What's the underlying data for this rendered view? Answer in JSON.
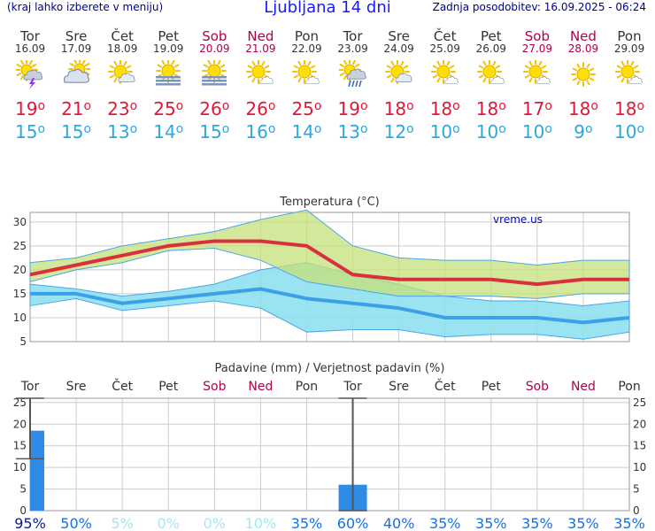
{
  "header": {
    "menu_note": "(kraj lahko izberete v meniju)",
    "title": "Ljubljana 14 dni",
    "updated": "Zadnja posodobitev: 16.09.2025 - 06:24"
  },
  "days": [
    {
      "name": "Tor",
      "date": "16.09",
      "weekend": false,
      "icon": "sun-cloud-thunder-icon",
      "tmax": "19",
      "tmin": "15"
    },
    {
      "name": "Sre",
      "date": "17.09",
      "weekend": false,
      "icon": "cloudy-icon",
      "tmax": "21",
      "tmin": "15"
    },
    {
      "name": "Čet",
      "date": "18.09",
      "weekend": false,
      "icon": "partly-cloudy-icon",
      "tmax": "23",
      "tmin": "13"
    },
    {
      "name": "Pet",
      "date": "19.09",
      "weekend": false,
      "icon": "sun-fog-icon",
      "tmax": "25",
      "tmin": "14"
    },
    {
      "name": "Sob",
      "date": "20.09",
      "weekend": true,
      "icon": "sun-fog-icon",
      "tmax": "26",
      "tmin": "15"
    },
    {
      "name": "Ned",
      "date": "21.09",
      "weekend": true,
      "icon": "sun-small-cloud-icon",
      "tmax": "26",
      "tmin": "16"
    },
    {
      "name": "Pon",
      "date": "22.09",
      "weekend": false,
      "icon": "sun-small-cloud-icon",
      "tmax": "25",
      "tmin": "14"
    },
    {
      "name": "Tor",
      "date": "23.09",
      "weekend": false,
      "icon": "sun-cloud-rain-icon",
      "tmax": "19",
      "tmin": "13"
    },
    {
      "name": "Sre",
      "date": "24.09",
      "weekend": false,
      "icon": "partly-cloudy-icon",
      "tmax": "18",
      "tmin": "12"
    },
    {
      "name": "Čet",
      "date": "25.09",
      "weekend": false,
      "icon": "sun-small-cloud-icon",
      "tmax": "18",
      "tmin": "10"
    },
    {
      "name": "Pet",
      "date": "26.09",
      "weekend": false,
      "icon": "sun-small-cloud-icon",
      "tmax": "18",
      "tmin": "10"
    },
    {
      "name": "Sob",
      "date": "27.09",
      "weekend": true,
      "icon": "sun-small-cloud-icon",
      "tmax": "17",
      "tmin": "10"
    },
    {
      "name": "Ned",
      "date": "28.09",
      "weekend": true,
      "icon": "sun-icon",
      "tmax": "18",
      "tmin": "9"
    },
    {
      "name": "Pon",
      "date": "29.09",
      "weekend": false,
      "icon": "sun-small-cloud-icon",
      "tmax": "18",
      "tmin": "10"
    }
  ],
  "colors": {
    "max_line": "#d9303f",
    "max_band": "#c5e07a",
    "min_line": "#3ca0e8",
    "min_band": "#8fe0ee",
    "bar": "#2f8ce6",
    "weekend_text": "#b0004a",
    "grid": "#cccccc"
  },
  "chart_data": [
    {
      "type": "line",
      "title": "Temperatura (°C)",
      "watermark": "vreme.us",
      "categories": [
        "16.09",
        "17.09",
        "18.09",
        "19.09",
        "20.09",
        "21.09",
        "22.09",
        "23.09",
        "24.09",
        "25.09",
        "26.09",
        "27.09",
        "28.09",
        "29.09"
      ],
      "ylim": [
        5,
        32
      ],
      "yticks": [
        5,
        10,
        15,
        20,
        25,
        30
      ],
      "grid": true,
      "series": [
        {
          "role": "max_mean",
          "values": [
            19,
            21,
            23,
            25,
            26,
            26,
            25,
            19,
            18,
            18,
            18,
            17,
            18,
            18
          ]
        },
        {
          "role": "max_band_upper",
          "values": [
            21.5,
            22.5,
            25,
            26.5,
            28,
            30.5,
            32.5,
            25,
            22.5,
            22,
            22,
            21,
            22,
            22
          ]
        },
        {
          "role": "max_band_lower",
          "values": [
            17.5,
            20,
            21.5,
            24,
            24.5,
            22,
            17.5,
            16,
            14.5,
            14.5,
            14.5,
            14,
            15,
            15
          ]
        },
        {
          "role": "min_mean",
          "values": [
            15,
            15,
            13,
            14,
            15,
            16,
            14,
            13,
            12,
            10,
            10,
            10,
            9,
            10
          ]
        },
        {
          "role": "min_band_upper",
          "values": [
            17,
            16,
            14.5,
            15.5,
            17,
            20,
            21.5,
            19,
            17,
            14.5,
            13.5,
            13.5,
            12.5,
            13.5
          ]
        },
        {
          "role": "min_band_lower",
          "values": [
            12.5,
            14,
            11.5,
            12.5,
            13.5,
            12,
            7,
            7.5,
            7.5,
            6,
            6.5,
            6.5,
            5.5,
            7
          ]
        }
      ]
    },
    {
      "type": "bar",
      "title": "Padavine (mm) / Verjetnost padavin (%)",
      "categories": [
        "Tor",
        "Sre",
        "Čet",
        "Pet",
        "Sob",
        "Ned",
        "Pon",
        "Tor",
        "Sre",
        "Čet",
        "Pet",
        "Sob",
        "Ned",
        "Pon"
      ],
      "weekend": [
        false,
        false,
        false,
        false,
        true,
        true,
        false,
        false,
        false,
        false,
        false,
        true,
        true,
        false
      ],
      "ylim": [
        0,
        26
      ],
      "yticks": [
        0,
        5,
        10,
        15,
        20,
        25
      ],
      "grid": true,
      "values": [
        18.5,
        0,
        0,
        0,
        0,
        0,
        0,
        6,
        0,
        0,
        0,
        0,
        0,
        0
      ],
      "error_bars": [
        {
          "index": 0,
          "low": 12,
          "high": 26
        },
        {
          "index": 7,
          "low": 0,
          "high": 26
        }
      ],
      "probabilities": [
        "95%",
        "50%",
        "5%",
        "0%",
        "0%",
        "10%",
        "35%",
        "60%",
        "40%",
        "35%",
        "35%",
        "35%",
        "35%",
        "35%"
      ]
    }
  ]
}
